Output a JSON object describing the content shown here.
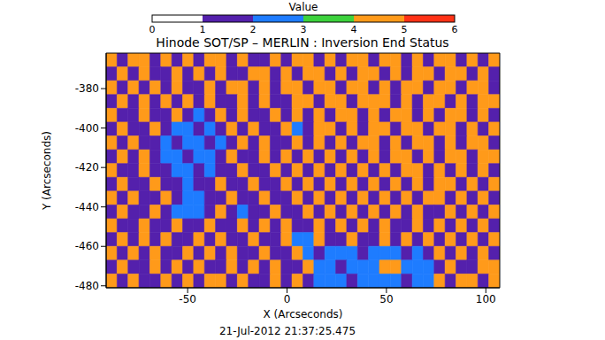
{
  "chart_data": {
    "type": "heatmap",
    "title": "Hinode SOT/SP – MERLIN : Inversion End Status",
    "annotations": [
      "21-Jul-2012 21:37:25.475"
    ],
    "x_label": "X (Arcseconds)",
    "y_label": "Y (Arcseconds)",
    "xlim": [
      -91,
      107
    ],
    "ylim": [
      -481,
      -362
    ],
    "xticks": [
      -50,
      0,
      50,
      100
    ],
    "yticks": [
      -480,
      -460,
      -440,
      -420,
      -400,
      -380
    ],
    "x_bins": [
      -91,
      -85.5,
      -80,
      -74.5,
      -69,
      -63.5,
      -58,
      -52.5,
      -47,
      -41.5,
      -36,
      -30.5,
      -25,
      -19.5,
      -14,
      -8.5,
      -3,
      2.5,
      8,
      13.5,
      19,
      24.5,
      30,
      35.5,
      41,
      46.5,
      52,
      57.5,
      63,
      68.5,
      74,
      79.5,
      85,
      90.5,
      96,
      101.5,
      107
    ],
    "y_bins": [
      -362,
      -369,
      -376,
      -383,
      -390,
      -397,
      -404,
      -411,
      -418,
      -425,
      -432,
      -439,
      -446,
      -453,
      -460,
      -467,
      -474,
      -481
    ],
    "cells": [
      [
        4,
        1,
        4,
        4,
        1,
        4,
        1,
        4,
        1,
        4,
        4,
        1,
        4,
        1,
        1,
        4,
        1,
        4,
        4,
        1,
        4,
        1,
        4,
        4,
        1,
        4,
        4,
        1,
        4,
        1,
        4,
        4,
        1,
        4,
        1,
        4
      ],
      [
        1,
        4,
        1,
        4,
        1,
        1,
        4,
        1,
        4,
        1,
        4,
        1,
        1,
        4,
        4,
        1,
        4,
        1,
        4,
        4,
        1,
        4,
        1,
        4,
        4,
        1,
        4,
        1,
        4,
        4,
        1,
        4,
        4,
        1,
        4,
        1
      ],
      [
        4,
        1,
        4,
        1,
        4,
        1,
        4,
        1,
        1,
        4,
        1,
        4,
        4,
        1,
        4,
        1,
        4,
        4,
        1,
        4,
        4,
        1,
        4,
        4,
        1,
        4,
        1,
        4,
        4,
        1,
        4,
        4,
        1,
        4,
        4,
        1
      ],
      [
        1,
        4,
        1,
        4,
        1,
        4,
        1,
        4,
        1,
        4,
        1,
        1,
        4,
        1,
        4,
        1,
        1,
        4,
        4,
        1,
        4,
        4,
        1,
        4,
        4,
        4,
        1,
        4,
        1,
        4,
        4,
        1,
        4,
        1,
        4,
        4
      ],
      [
        4,
        1,
        1,
        4,
        1,
        1,
        4,
        1,
        2,
        1,
        4,
        1,
        4,
        1,
        1,
        4,
        1,
        4,
        1,
        4,
        1,
        4,
        4,
        1,
        4,
        1,
        4,
        4,
        1,
        4,
        1,
        4,
        4,
        1,
        4,
        1
      ],
      [
        1,
        4,
        1,
        1,
        4,
        1,
        2,
        2,
        1,
        2,
        1,
        4,
        1,
        4,
        1,
        1,
        4,
        2,
        1,
        4,
        4,
        1,
        4,
        1,
        4,
        4,
        1,
        4,
        4,
        1,
        4,
        4,
        1,
        4,
        1,
        4
      ],
      [
        4,
        1,
        4,
        1,
        1,
        2,
        1,
        2,
        2,
        1,
        2,
        1,
        4,
        1,
        4,
        1,
        1,
        4,
        1,
        4,
        1,
        4,
        1,
        4,
        4,
        1,
        4,
        1,
        4,
        4,
        1,
        4,
        1,
        4,
        4,
        1
      ],
      [
        1,
        4,
        1,
        4,
        1,
        2,
        2,
        1,
        2,
        2,
        1,
        4,
        1,
        1,
        4,
        1,
        4,
        1,
        4,
        1,
        4,
        1,
        4,
        1,
        4,
        1,
        4,
        4,
        1,
        4,
        1,
        4,
        4,
        1,
        4,
        4
      ],
      [
        4,
        1,
        1,
        4,
        1,
        1,
        2,
        2,
        1,
        2,
        1,
        1,
        4,
        1,
        1,
        4,
        1,
        4,
        1,
        4,
        1,
        4,
        1,
        4,
        1,
        4,
        1,
        4,
        4,
        1,
        4,
        1,
        4,
        1,
        4,
        1
      ],
      [
        1,
        4,
        1,
        1,
        4,
        1,
        1,
        2,
        1,
        1,
        4,
        1,
        1,
        4,
        1,
        1,
        4,
        1,
        4,
        1,
        4,
        1,
        4,
        1,
        4,
        1,
        4,
        1,
        4,
        1,
        4,
        4,
        1,
        4,
        1,
        4
      ],
      [
        4,
        1,
        4,
        1,
        1,
        4,
        1,
        2,
        2,
        1,
        1,
        4,
        1,
        1,
        4,
        1,
        1,
        4,
        1,
        4,
        1,
        4,
        1,
        4,
        1,
        4,
        1,
        4,
        1,
        4,
        4,
        1,
        4,
        1,
        4,
        1
      ],
      [
        1,
        4,
        1,
        1,
        4,
        1,
        2,
        2,
        2,
        1,
        4,
        1,
        2,
        1,
        1,
        4,
        1,
        1,
        4,
        1,
        4,
        1,
        4,
        1,
        4,
        1,
        4,
        1,
        4,
        1,
        1,
        4,
        1,
        4,
        1,
        4
      ],
      [
        4,
        1,
        1,
        4,
        1,
        1,
        4,
        1,
        1,
        4,
        1,
        1,
        4,
        1,
        4,
        1,
        4,
        1,
        1,
        4,
        1,
        4,
        1,
        4,
        1,
        4,
        1,
        1,
        4,
        1,
        4,
        1,
        4,
        1,
        4,
        1
      ],
      [
        1,
        4,
        1,
        4,
        1,
        4,
        1,
        1,
        4,
        1,
        4,
        1,
        1,
        4,
        1,
        1,
        4,
        2,
        2,
        4,
        1,
        1,
        4,
        1,
        1,
        4,
        1,
        4,
        1,
        4,
        1,
        4,
        1,
        4,
        1,
        4
      ],
      [
        4,
        1,
        4,
        1,
        4,
        1,
        1,
        4,
        1,
        4,
        1,
        4,
        1,
        1,
        4,
        1,
        1,
        4,
        2,
        1,
        2,
        2,
        2,
        1,
        2,
        2,
        2,
        1,
        2,
        1,
        4,
        1,
        4,
        1,
        4,
        1
      ],
      [
        1,
        4,
        1,
        1,
        4,
        1,
        4,
        1,
        4,
        1,
        1,
        4,
        1,
        4,
        1,
        4,
        1,
        1,
        4,
        2,
        2,
        1,
        2,
        2,
        2,
        4,
        4,
        2,
        2,
        2,
        1,
        4,
        1,
        1,
        4,
        4
      ],
      [
        4,
        1,
        4,
        1,
        1,
        4,
        1,
        4,
        1,
        4,
        4,
        1,
        4,
        1,
        1,
        4,
        1,
        4,
        1,
        2,
        2,
        2,
        1,
        2,
        2,
        2,
        2,
        1,
        2,
        2,
        4,
        1,
        4,
        4,
        1,
        4
      ]
    ],
    "colorbar": {
      "label": "Value",
      "range": [
        0,
        6
      ],
      "ticks": [
        0,
        1,
        2,
        3,
        4,
        5,
        6
      ],
      "colors": [
        "#ffffff",
        "#5420ac",
        "#1e7cff",
        "#3cd23c",
        "#ff9a1a",
        "#ff3216"
      ]
    }
  }
}
